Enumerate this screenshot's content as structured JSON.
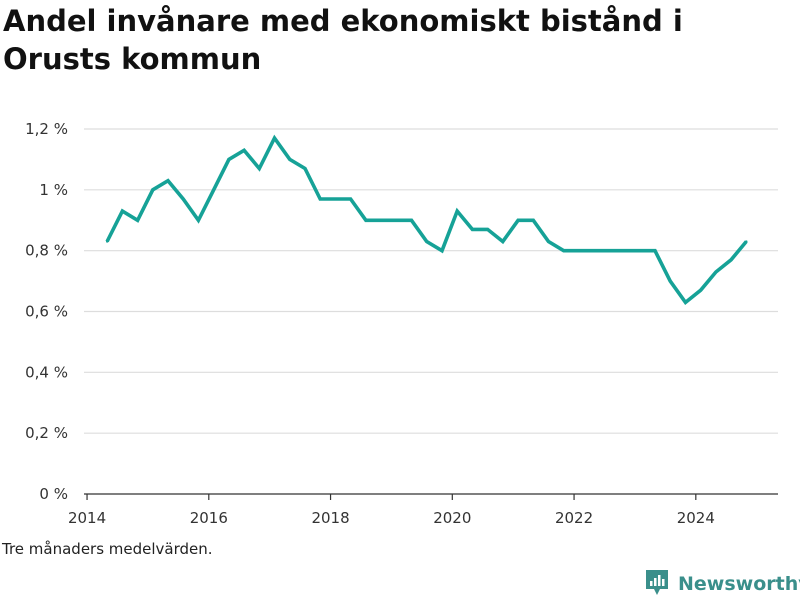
{
  "chart_data": {
    "type": "line",
    "title": "Andel invånare med ekonomiskt bistånd i Orusts kommun",
    "ylim": [
      0,
      1.2
    ],
    "xlim": [
      2013.95,
      2025.35
    ],
    "y_ticks": [
      {
        "value": 0,
        "label": "0 %"
      },
      {
        "value": 0.2,
        "label": "0,2 %"
      },
      {
        "value": 0.4,
        "label": "0,4 %"
      },
      {
        "value": 0.6,
        "label": "0,6 %"
      },
      {
        "value": 0.8,
        "label": "0,8 %"
      },
      {
        "value": 1.0,
        "label": "1 %"
      },
      {
        "value": 1.2,
        "label": "1,2 %"
      }
    ],
    "x_ticks": [
      {
        "value": 2014,
        "label": "2014"
      },
      {
        "value": 2016,
        "label": "2016"
      },
      {
        "value": 2018,
        "label": "2018"
      },
      {
        "value": 2020,
        "label": "2020"
      },
      {
        "value": 2022,
        "label": "2022"
      },
      {
        "value": 2024,
        "label": "2024"
      }
    ],
    "grid": true,
    "color": "#16a297",
    "series": [
      {
        "x": [
          2014.33,
          2014.58,
          2014.83,
          2015.08,
          2015.33,
          2015.58,
          2015.83,
          2016.08,
          2016.33,
          2016.58,
          2016.83,
          2017.08,
          2017.33,
          2017.58,
          2017.83,
          2018.08,
          2018.33,
          2018.58,
          2018.83,
          2019.08,
          2019.33,
          2019.58,
          2019.83,
          2020.08,
          2020.33,
          2020.58,
          2020.83,
          2021.08,
          2021.33,
          2021.58,
          2021.83,
          2022.08,
          2022.33,
          2022.58,
          2022.83,
          2023.08,
          2023.33,
          2023.58,
          2023.83,
          2024.08,
          2024.33,
          2024.58,
          2024.83
        ],
        "values": [
          0.83,
          0.93,
          0.9,
          1.0,
          1.03,
          0.97,
          0.9,
          1.0,
          1.1,
          1.13,
          1.07,
          1.17,
          1.1,
          1.07,
          0.97,
          0.97,
          0.97,
          0.9,
          0.9,
          0.9,
          0.9,
          0.83,
          0.8,
          0.93,
          0.87,
          0.87,
          0.83,
          0.9,
          0.9,
          0.83,
          0.8,
          0.8,
          0.8,
          0.8,
          0.8,
          0.8,
          0.8,
          0.7,
          0.63,
          0.67,
          0.73,
          0.77,
          0.83
        ]
      }
    ]
  },
  "note": "Tre månaders medelvärden.",
  "brand": {
    "name": "Newsworthy",
    "icon": "newsworthy-logo-icon",
    "color": "#3a8f8b"
  }
}
